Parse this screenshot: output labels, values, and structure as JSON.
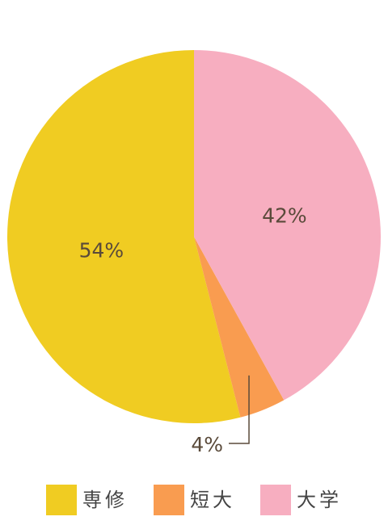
{
  "chart_data": {
    "type": "pie",
    "categories": [
      "専修",
      "短大",
      "大学"
    ],
    "values": [
      54,
      4,
      42
    ],
    "value_labels": [
      "54%",
      "4%",
      "42%"
    ],
    "colors": [
      "#f0cc22",
      "#f99c50",
      "#f7aec0"
    ],
    "legend": "bottom"
  }
}
